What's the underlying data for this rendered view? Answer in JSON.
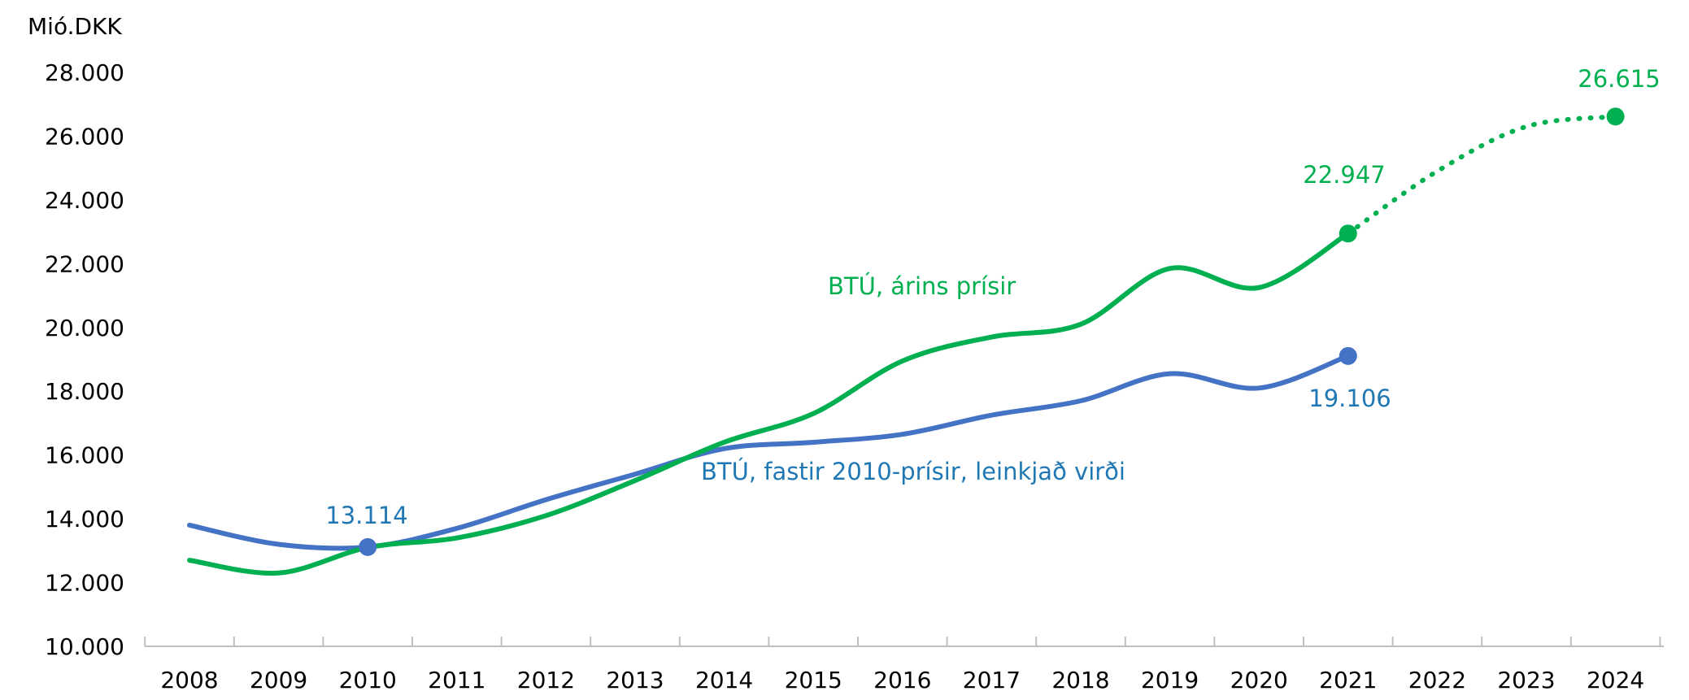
{
  "chart_data": {
    "type": "line",
    "unit_label": "Mió.DKK",
    "ylim": [
      10000,
      28000
    ],
    "yticks": [
      "10.000",
      "12.000",
      "14.000",
      "16.000",
      "18.000",
      "20.000",
      "22.000",
      "24.000",
      "26.000",
      "28.000"
    ],
    "categories": [
      "2008",
      "2009",
      "2010",
      "2011",
      "2012",
      "2013",
      "2014",
      "2015",
      "2016",
      "2017",
      "2018",
      "2019",
      "2020",
      "2021",
      "2022",
      "2023",
      "2024"
    ],
    "grid": false,
    "series": [
      {
        "name": "BTÚ, árins prísir",
        "color": "#00b050",
        "values": [
          12700,
          12300,
          13100,
          13400,
          14100,
          15200,
          16400,
          17300,
          18950,
          19700,
          20100,
          21850,
          21250,
          22947,
          null,
          null,
          null
        ],
        "forecast": {
          "x": [
            "2021",
            "2022",
            "2023",
            "2024"
          ],
          "values": [
            22947,
            24900,
            26300,
            26615
          ],
          "style": "dotted"
        },
        "marked_points": [
          {
            "x": "2021",
            "value": 22947,
            "label": "22.947"
          },
          {
            "x": "2024",
            "value": 26615,
            "label": "26.615"
          }
        ]
      },
      {
        "name": "BTÚ, fastir 2010-prísir, leinkjað virði",
        "color": "#4472c4",
        "label_color": "#1f78b4",
        "values": [
          13800,
          13200,
          13114,
          13700,
          14600,
          15400,
          16200,
          16400,
          16650,
          17250,
          17700,
          18550,
          18100,
          19106,
          null,
          null,
          null
        ],
        "marked_points": [
          {
            "x": "2010",
            "value": 13114,
            "label": "13.114"
          },
          {
            "x": "2021",
            "value": 19106,
            "label": "19.106"
          }
        ]
      }
    ]
  }
}
